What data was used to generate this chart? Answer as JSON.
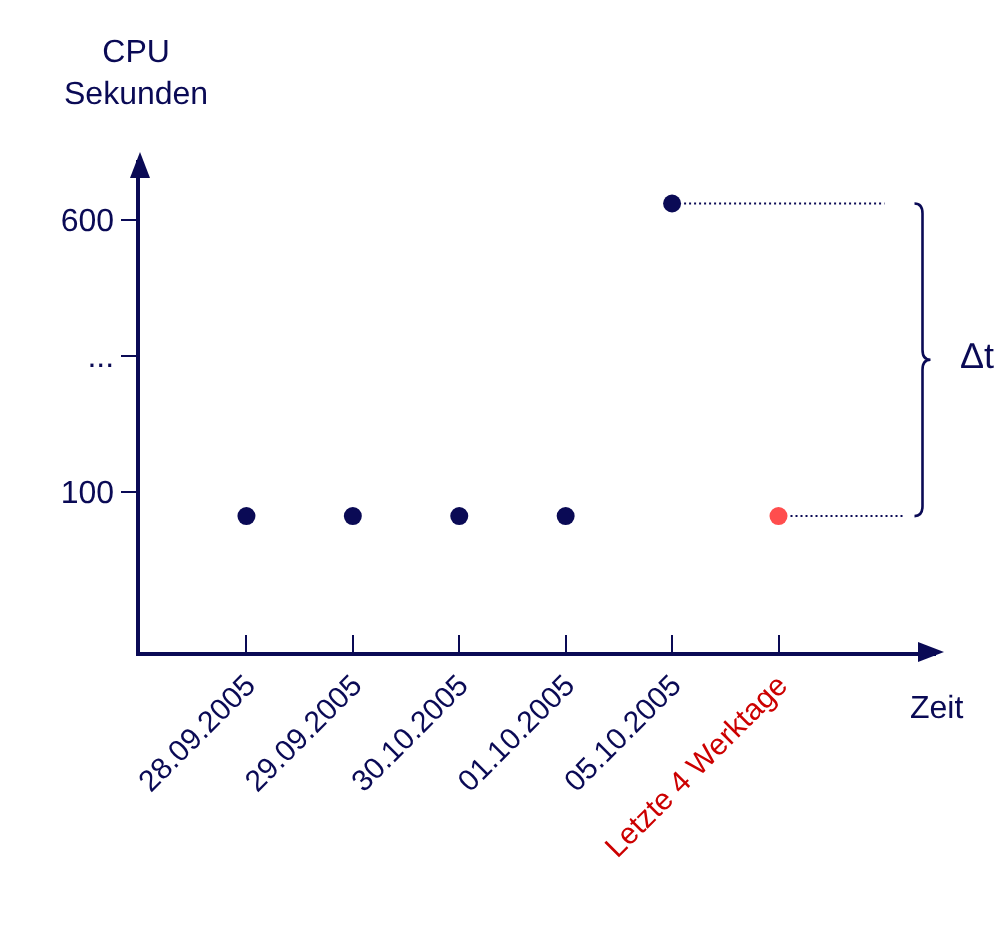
{
  "chart_data": {
    "type": "scatter",
    "categories": [
      "28.09.2005",
      "29.09.2005",
      "30.10.2005",
      "01.10.2005",
      "05.10.2005",
      "Letzte 4 Werktage"
    ],
    "values": [
      55,
      55,
      55,
      55,
      630,
      55
    ],
    "colors": [
      "#0a0a55",
      "#0a0a55",
      "#0a0a55",
      "#0a0a55",
      "#0a0a55",
      "#ff4d4d"
    ],
    "ylim": [
      -195,
      710
    ],
    "yticks": [
      100,
      {
        "value": 350,
        "label": "..."
      },
      600
    ],
    "ylabel": "CPU\nSekunden",
    "xlabel": "Zeit",
    "annotations": [
      "Δt"
    ],
    "marker": "circle"
  }
}
